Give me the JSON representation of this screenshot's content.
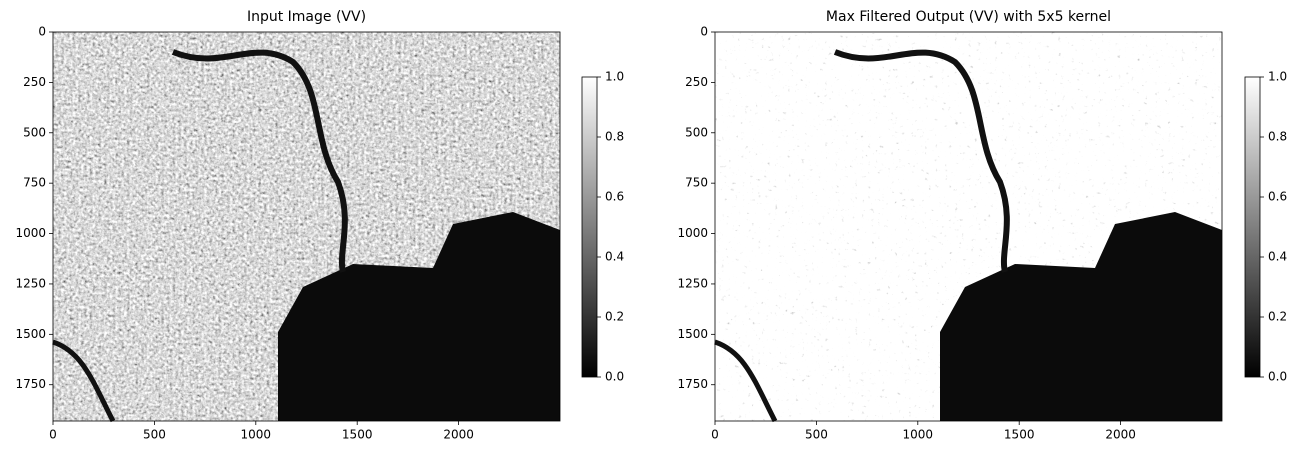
{
  "chart_data": [
    {
      "type": "image",
      "title": "Input Image (VV)",
      "xlim": [
        0,
        2500
      ],
      "ylim": [
        1930,
        0
      ],
      "xticks": [
        0,
        500,
        1000,
        1500,
        2000
      ],
      "yticks": [
        0,
        250,
        500,
        750,
        1000,
        1250,
        1500,
        1750
      ],
      "colormap": "gray",
      "clim": [
        0,
        1
      ],
      "colorbar_ticks": [
        {
          "value": 0,
          "label": "0.0"
        },
        0.2,
        0.4,
        0.6,
        0.8,
        {
          "value": 1,
          "label": "1.0"
        }
      ]
    },
    {
      "type": "image",
      "title": "Max Filtered Output (VV) with 5x5 kernel",
      "xlim": [
        0,
        2500
      ],
      "ylim": [
        1930,
        0
      ],
      "xticks": [
        0,
        500,
        1000,
        1500,
        2000
      ],
      "yticks": [
        0,
        250,
        500,
        750,
        1000,
        1250,
        1500,
        1750
      ],
      "colormap": "gray",
      "clim": [
        0,
        1
      ],
      "colorbar_ticks": [
        {
          "value": 0,
          "label": "0.0"
        },
        0.2,
        0.4,
        0.6,
        0.8,
        {
          "value": 1,
          "label": "1.0"
        }
      ]
    }
  ]
}
